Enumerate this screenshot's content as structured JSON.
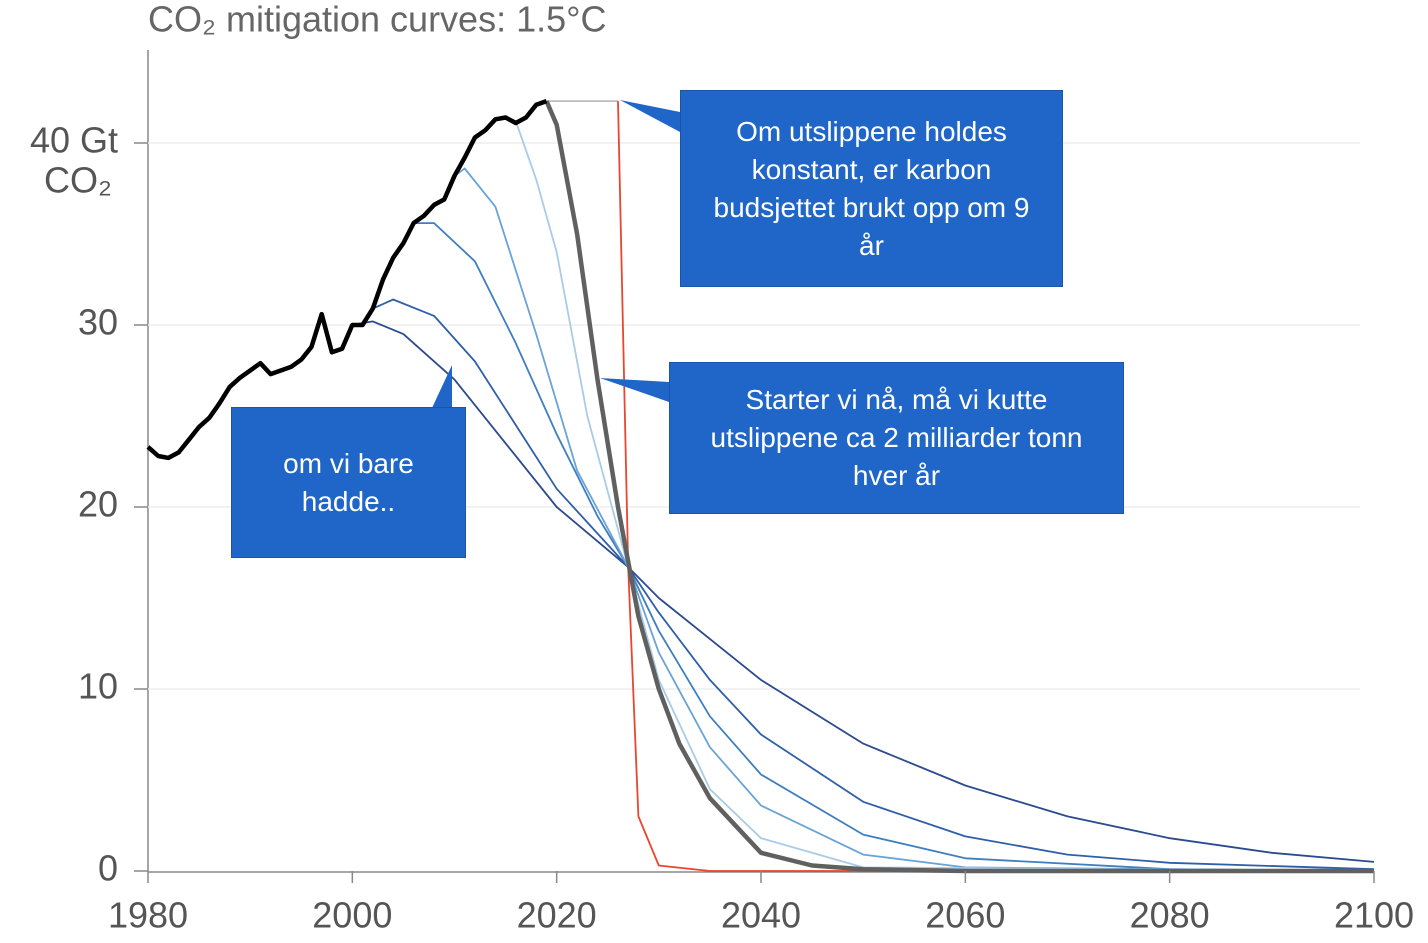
{
  "chart_data": {
    "type": "line",
    "title": "CO₂ mitigation curves: 1.5°C",
    "y_axis_unit": "CO₂",
    "xlim": [
      1980,
      2100
    ],
    "xticks": [
      1980,
      2000,
      2020,
      2040,
      2060,
      2080,
      2100
    ],
    "ylim": [
      0,
      45
    ],
    "yticks": [
      0,
      10,
      20,
      30,
      {
        "value": 40,
        "label": "40 Gt"
      }
    ],
    "grid": true,
    "series": [
      {
        "color": "#2b4a8f",
        "x": [
          2000,
          2002,
          2005,
          2010,
          2015,
          2020,
          2027,
          2030,
          2040,
          2050,
          2060,
          2070,
          2080,
          2090,
          2100
        ],
        "values": [
          30.0,
          30.2,
          29.5,
          27,
          23.5,
          20,
          16.7,
          15,
          10.5,
          7,
          4.7,
          3,
          1.8,
          1,
          0.5
        ]
      },
      {
        "color": "#2f5fa8",
        "x": [
          2002,
          2004,
          2008,
          2012,
          2016,
          2020,
          2027,
          2030,
          2035,
          2040,
          2050,
          2060,
          2070,
          2080,
          2100
        ],
        "values": [
          30.9,
          31.4,
          30.5,
          28,
          24.5,
          21,
          16.7,
          14.2,
          10.5,
          7.5,
          3.8,
          1.9,
          0.9,
          0.45,
          0.1
        ]
      },
      {
        "color": "#3f7fc0",
        "x": [
          2006,
          2008,
          2012,
          2016,
          2020,
          2024,
          2027,
          2030,
          2035,
          2040,
          2050,
          2060,
          2080,
          2100
        ],
        "values": [
          35.6,
          35.6,
          33.5,
          29,
          24,
          19.5,
          16.7,
          13.2,
          8.5,
          5.3,
          2,
          0.7,
          0.1,
          0
        ]
      },
      {
        "color": "#6aa3d6",
        "x": [
          2010,
          2011,
          2014,
          2018,
          2022,
          2027,
          2030,
          2035,
          2040,
          2050,
          2060,
          2100
        ],
        "values": [
          38.2,
          38.6,
          36.5,
          29.5,
          22,
          16.7,
          12,
          6.8,
          3.6,
          0.9,
          0.2,
          0
        ]
      },
      {
        "color": "#a9cbe8",
        "x": [
          2015,
          2016,
          2018,
          2020,
          2023,
          2027,
          2030,
          2035,
          2040,
          2050,
          2100
        ],
        "values": [
          41.4,
          41.2,
          38,
          34,
          25,
          16.7,
          10.5,
          4.5,
          1.8,
          0.2,
          0
        ]
      },
      {
        "color": "#bdbdbd",
        "x": [
          2019,
          2026
        ],
        "values": [
          42.3,
          42.3
        ]
      },
      {
        "color": "#e8462e",
        "x": [
          2026,
          2027,
          2028,
          2030,
          2035,
          2100
        ],
        "values": [
          42.3,
          16.7,
          3,
          0.3,
          0,
          0
        ]
      },
      {
        "color": "#606060",
        "x": [
          2019,
          2020,
          2022,
          2024,
          2026,
          2028,
          2030,
          2032,
          2035,
          2040,
          2045,
          2050,
          2060,
          2100
        ],
        "values": [
          42.3,
          41,
          35,
          27,
          20,
          14,
          10,
          7,
          4,
          1,
          0.3,
          0.1,
          0,
          0
        ]
      },
      {
        "color": "#000000",
        "x": [
          1980,
          1981,
          1982,
          1983,
          1984,
          1985,
          1986,
          1987,
          1988,
          1989,
          1990,
          1991,
          1992,
          1993,
          1994,
          1995,
          1996,
          1997,
          1998,
          1999,
          2000,
          2001,
          2002,
          2003,
          2004,
          2005,
          2006,
          2007,
          2008,
          2009,
          2010,
          2011,
          2012,
          2013,
          2014,
          2015,
          2016,
          2017,
          2018,
          2019
        ],
        "values": [
          23.3,
          22.8,
          22.7,
          23.0,
          23.7,
          24.4,
          24.9,
          25.7,
          26.6,
          27.1,
          27.5,
          27.9,
          27.3,
          27.5,
          27.7,
          28.1,
          28.8,
          30.6,
          28.5,
          28.7,
          30.0,
          30.0,
          30.9,
          32.5,
          33.7,
          34.5,
          35.6,
          36.0,
          36.6,
          36.9,
          38.2,
          39.2,
          40.3,
          40.7,
          41.3,
          41.4,
          41.1,
          41.4,
          42.1,
          42.3
        ]
      }
    ],
    "annotations": [
      "Om utslippene holdes konstant, er karbon budsjettet brukt opp om 9 år",
      "Starter vi nå, må vi kutte utslippene ca 2 milliarder tonn hver år",
      "om vi bare hadde.."
    ]
  }
}
